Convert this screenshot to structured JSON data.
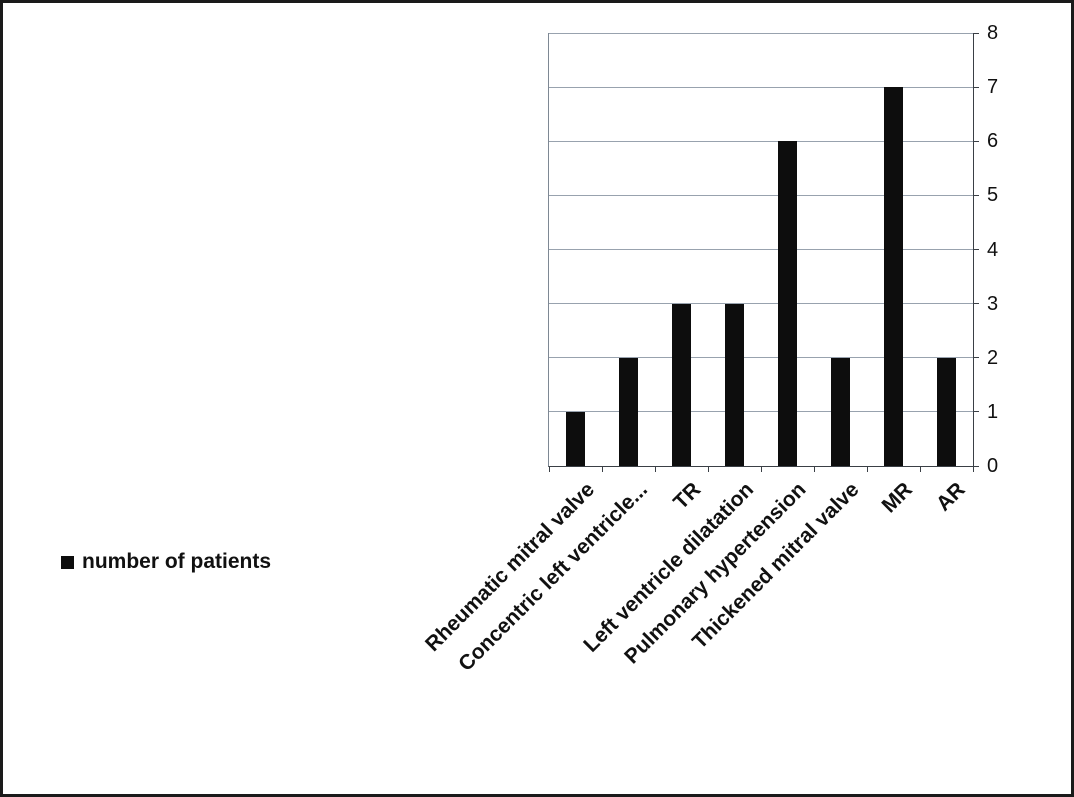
{
  "chart_data": {
    "type": "bar",
    "title": "",
    "xlabel": "",
    "ylabel": "",
    "categories": [
      "Rheumatic mitral valve",
      "Concentric left ventricle...",
      "TR",
      "Left ventricle dilatation",
      "Pulmonary hypertension",
      "Thickened mitral valve",
      "MR",
      "AR"
    ],
    "values": [
      1,
      2,
      3,
      3,
      6,
      2,
      7,
      2
    ],
    "ylim": [
      0,
      8
    ],
    "yticks": [
      0,
      1,
      2,
      3,
      4,
      5,
      6,
      7,
      8
    ],
    "grid": true,
    "legend_position": "bottom-left",
    "bar_color": "#0d0d0d",
    "gridline_color": "#98a2ae",
    "axis_color": "#3a3f45"
  },
  "legend": {
    "label": "number of patients"
  }
}
